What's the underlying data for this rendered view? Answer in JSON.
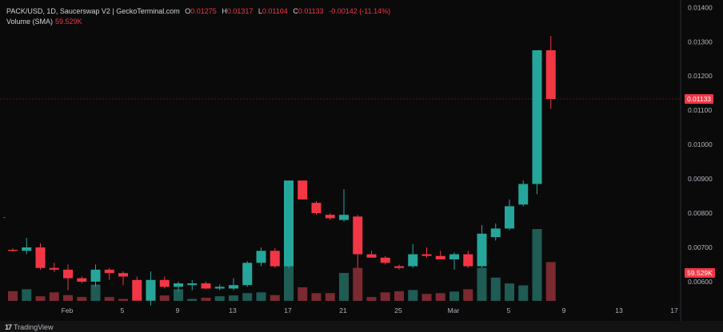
{
  "legend": {
    "symbol": "PACK/USD, 1D, Saucerswap V2 | GeckoTerminal.com",
    "o_label": "O",
    "o_value": "0.01275",
    "h_label": "H",
    "h_value": "0.01317",
    "l_label": "L",
    "l_value": "0.01104",
    "c_label": "C",
    "c_value": "0.01133",
    "change": "-0.00142 (-11.14%)",
    "volume_label": "Volume (SMA)",
    "volume_value": "59.529K"
  },
  "price_badge": "0.01133",
  "volume_badge": "59.529K",
  "brand": "TradingView",
  "colors": {
    "up": "#26a69a",
    "down": "#f23645",
    "up_volume": "#1e5c54",
    "down_volume": "#7a2a30",
    "background": "#0a0a0a"
  },
  "chart_data": {
    "type": "candlestick",
    "x_tick_labels": [
      "Feb",
      "5",
      "9",
      "13",
      "17",
      "21",
      "25",
      "Mar",
      "5",
      "9",
      "13",
      "17"
    ],
    "y_tick_labels": [
      "0.01400",
      "0.01300",
      "0.01200",
      "0.01100",
      "0.01000",
      "0.00900",
      "0.00800",
      "0.00700",
      "0.00600"
    ],
    "ylim": [
      0.0053,
      0.0141
    ],
    "last_price": 0.01133,
    "candles": [
      {
        "date": "Jan 28",
        "o": 0.00693,
        "h": 0.00697,
        "l": 0.00688,
        "c": 0.0069
      },
      {
        "date": "Jan 29",
        "o": 0.0069,
        "h": 0.00728,
        "l": 0.0068,
        "c": 0.007
      },
      {
        "date": "Jan 30",
        "o": 0.007,
        "h": 0.00712,
        "l": 0.00635,
        "c": 0.0064
      },
      {
        "date": "Jan 31",
        "o": 0.0064,
        "h": 0.00655,
        "l": 0.00628,
        "c": 0.00635
      },
      {
        "date": "Feb 1",
        "o": 0.00635,
        "h": 0.0065,
        "l": 0.00575,
        "c": 0.0061
      },
      {
        "date": "Feb 2",
        "o": 0.0061,
        "h": 0.00615,
        "l": 0.00595,
        "c": 0.006
      },
      {
        "date": "Feb 3",
        "o": 0.006,
        "h": 0.0065,
        "l": 0.00585,
        "c": 0.00635
      },
      {
        "date": "Feb 4",
        "o": 0.00635,
        "h": 0.0064,
        "l": 0.00605,
        "c": 0.00625
      },
      {
        "date": "Feb 5",
        "o": 0.00625,
        "h": 0.0063,
        "l": 0.0059,
        "c": 0.00615
      },
      {
        "date": "Feb 6",
        "o": 0.00605,
        "h": 0.00615,
        "l": 0.00545,
        "c": 0.00545
      },
      {
        "date": "Feb 7",
        "o": 0.00545,
        "h": 0.0063,
        "l": 0.0053,
        "c": 0.00605
      },
      {
        "date": "Feb 8",
        "o": 0.00605,
        "h": 0.00615,
        "l": 0.0058,
        "c": 0.00585
      },
      {
        "date": "Feb 9",
        "o": 0.00585,
        "h": 0.006,
        "l": 0.0057,
        "c": 0.00595
      },
      {
        "date": "Feb 10",
        "o": 0.0059,
        "h": 0.00605,
        "l": 0.00575,
        "c": 0.00595
      },
      {
        "date": "Feb 11",
        "o": 0.00595,
        "h": 0.006,
        "l": 0.00578,
        "c": 0.0058
      },
      {
        "date": "Feb 12",
        "o": 0.0058,
        "h": 0.00592,
        "l": 0.00575,
        "c": 0.00585
      },
      {
        "date": "Feb 13",
        "o": 0.0058,
        "h": 0.0061,
        "l": 0.00575,
        "c": 0.0059
      },
      {
        "date": "Feb 14",
        "o": 0.0059,
        "h": 0.0066,
        "l": 0.00585,
        "c": 0.00655
      },
      {
        "date": "Feb 15",
        "o": 0.00655,
        "h": 0.007,
        "l": 0.00645,
        "c": 0.0069
      },
      {
        "date": "Feb 16",
        "o": 0.0069,
        "h": 0.00698,
        "l": 0.0064,
        "c": 0.00645
      },
      {
        "date": "Feb 17",
        "o": 0.00645,
        "h": 0.00895,
        "l": 0.0064,
        "c": 0.00895
      },
      {
        "date": "Feb 18",
        "o": 0.00895,
        "h": 0.00895,
        "l": 0.0084,
        "c": 0.0084
      },
      {
        "date": "Feb 19",
        "o": 0.0083,
        "h": 0.00835,
        "l": 0.00795,
        "c": 0.008
      },
      {
        "date": "Feb 20",
        "o": 0.00795,
        "h": 0.008,
        "l": 0.0078,
        "c": 0.00785
      },
      {
        "date": "Feb 21",
        "o": 0.0078,
        "h": 0.0087,
        "l": 0.00775,
        "c": 0.00795
      },
      {
        "date": "Feb 22",
        "o": 0.0079,
        "h": 0.00795,
        "l": 0.0064,
        "c": 0.0068
      },
      {
        "date": "Feb 23",
        "o": 0.0068,
        "h": 0.0069,
        "l": 0.0067,
        "c": 0.0067
      },
      {
        "date": "Feb 24",
        "o": 0.0067,
        "h": 0.00675,
        "l": 0.0065,
        "c": 0.00655
      },
      {
        "date": "Feb 25",
        "o": 0.00645,
        "h": 0.0065,
        "l": 0.00635,
        "c": 0.0064
      },
      {
        "date": "Feb 26",
        "o": 0.00645,
        "h": 0.0071,
        "l": 0.0064,
        "c": 0.0068
      },
      {
        "date": "Feb 27",
        "o": 0.0068,
        "h": 0.007,
        "l": 0.0067,
        "c": 0.00675
      },
      {
        "date": "Feb 28",
        "o": 0.00675,
        "h": 0.0069,
        "l": 0.00665,
        "c": 0.00665
      },
      {
        "date": "Mar 1",
        "o": 0.00665,
        "h": 0.00685,
        "l": 0.00635,
        "c": 0.0068
      },
      {
        "date": "Mar 2",
        "o": 0.0068,
        "h": 0.0069,
        "l": 0.0064,
        "c": 0.00645
      },
      {
        "date": "Mar 3",
        "o": 0.00645,
        "h": 0.00765,
        "l": 0.0064,
        "c": 0.0074
      },
      {
        "date": "Mar 4",
        "o": 0.0073,
        "h": 0.0077,
        "l": 0.0072,
        "c": 0.00755
      },
      {
        "date": "Mar 5",
        "o": 0.00755,
        "h": 0.0084,
        "l": 0.0075,
        "c": 0.0082
      },
      {
        "date": "Mar 6",
        "o": 0.00825,
        "h": 0.00895,
        "l": 0.0082,
        "c": 0.00885
      },
      {
        "date": "Mar 7",
        "o": 0.00885,
        "h": 0.01275,
        "l": 0.00855,
        "c": 0.01275
      },
      {
        "date": "Mar 8",
        "o": 0.01275,
        "h": 0.01317,
        "l": 0.01104,
        "c": 0.01133
      }
    ],
    "volumes": [
      0.25,
      0.3,
      0.12,
      0.22,
      0.15,
      0.1,
      0.42,
      0.1,
      0.05,
      0.06,
      0.16,
      0.14,
      0.3,
      0.05,
      0.08,
      0.12,
      0.14,
      0.2,
      0.22,
      0.15,
      1.6,
      0.35,
      0.2,
      0.2,
      0.72,
      0.85,
      0.1,
      0.22,
      0.25,
      0.28,
      0.18,
      0.2,
      0.24,
      0.3,
      0.85,
      0.6,
      0.45,
      0.4,
      1.85,
      1.0
    ],
    "volume_ylim": [
      0,
      2.2
    ]
  }
}
